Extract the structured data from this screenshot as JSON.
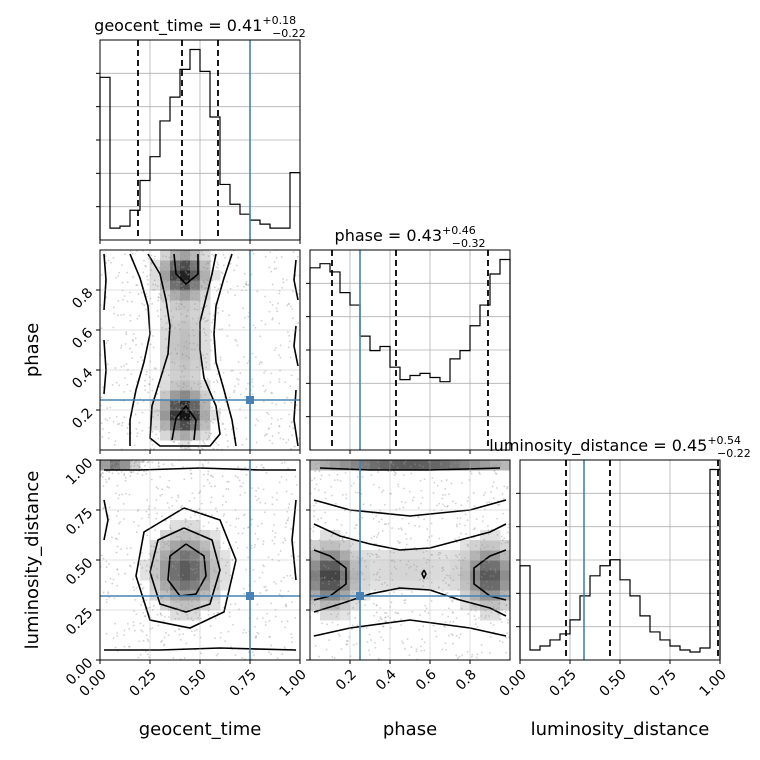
{
  "chart_data": {
    "type": "corner",
    "parameters": [
      "geocent_time",
      "phase",
      "luminosity_distance"
    ],
    "truths": {
      "geocent_time": 0.75,
      "phase": 0.25,
      "luminosity_distance": 0.32
    },
    "colors": {
      "truth": "#4682b4",
      "histogram": "#000000",
      "samples": "#9a9a9a"
    },
    "grid": true,
    "titles": [
      {
        "param": "geocent_time",
        "name": "geocent_time",
        "median": "0.41",
        "plus": "+0.18",
        "minus": "−0.22"
      },
      {
        "param": "phase",
        "name": "phase",
        "median": "0.43",
        "plus": "+0.46",
        "minus": "−0.32"
      },
      {
        "param": "luminosity_distance",
        "name": "luminosity_distance",
        "median": "0.45",
        "plus": "+0.54",
        "minus": "−0.22"
      }
    ],
    "marginals": {
      "geocent_time": {
        "range": [
          0.0,
          1.0
        ],
        "ticks": [
          0.0,
          0.25,
          0.5,
          0.75,
          1.0
        ],
        "tick_labels": [
          "0.00",
          "0.25",
          "0.50",
          "0.75",
          "1.00"
        ],
        "bin_edges": [
          0.0,
          0.05,
          0.1,
          0.15,
          0.2,
          0.25,
          0.3,
          0.35,
          0.4,
          0.45,
          0.5,
          0.55,
          0.6,
          0.65,
          0.7,
          0.75,
          0.8,
          0.85,
          0.9,
          0.95,
          1.0
        ],
        "counts": [
          0.82,
          0.06,
          0.07,
          0.15,
          0.3,
          0.42,
          0.6,
          0.72,
          0.86,
          0.96,
          0.85,
          0.62,
          0.28,
          0.18,
          0.13,
          0.1,
          0.08,
          0.06,
          0.06,
          0.34
        ],
        "quantiles": [
          0.19,
          0.41,
          0.59
        ],
        "truth": 0.75
      },
      "phase": {
        "range": [
          0.0,
          1.0
        ],
        "ticks": [
          0.2,
          0.4,
          0.6,
          0.8
        ],
        "tick_labels": [
          "0.2",
          "0.4",
          "0.6",
          "0.8"
        ],
        "bin_edges": [
          0.0,
          0.05,
          0.1,
          0.15,
          0.2,
          0.25,
          0.3,
          0.35,
          0.4,
          0.45,
          0.5,
          0.55,
          0.6,
          0.65,
          0.7,
          0.75,
          0.8,
          0.85,
          0.9,
          0.95,
          1.0
        ],
        "counts": [
          0.88,
          0.9,
          0.86,
          0.76,
          0.7,
          0.55,
          0.48,
          0.5,
          0.4,
          0.34,
          0.36,
          0.37,
          0.35,
          0.33,
          0.44,
          0.48,
          0.6,
          0.7,
          0.85,
          0.92
        ],
        "quantiles": [
          0.11,
          0.43,
          0.89
        ],
        "truth": 0.25
      },
      "luminosity_distance": {
        "range": [
          0.0,
          1.0
        ],
        "ticks": [
          0.0,
          0.25,
          0.5,
          0.75,
          1.0
        ],
        "tick_labels": [
          "0.00",
          "0.25",
          "0.50",
          "0.75",
          "1.00"
        ],
        "bin_edges": [
          0.0,
          0.05,
          0.1,
          0.15,
          0.2,
          0.25,
          0.3,
          0.35,
          0.4,
          0.45,
          0.5,
          0.55,
          0.6,
          0.65,
          0.7,
          0.75,
          0.8,
          0.85,
          0.9,
          0.95,
          1.0
        ],
        "counts": [
          0.47,
          0.05,
          0.07,
          0.1,
          0.13,
          0.2,
          0.32,
          0.42,
          0.47,
          0.5,
          0.4,
          0.32,
          0.22,
          0.14,
          0.1,
          0.07,
          0.05,
          0.04,
          0.06,
          0.95
        ],
        "quantiles": [
          0.23,
          0.45,
          0.99
        ],
        "truth": 0.32
      }
    },
    "panels_2d": [
      {
        "x": "geocent_time",
        "y": "phase",
        "xlim": [
          0.0,
          1.0
        ],
        "ylim": [
          0.0,
          1.0
        ],
        "y_ticks": [
          0.2,
          0.4,
          0.6,
          0.8
        ],
        "y_tick_labels": [
          "0.2",
          "0.4",
          "0.6",
          "0.8"
        ],
        "density_peaks": [
          {
            "x": 0.42,
            "y": 0.88,
            "amp": 0.9,
            "sx": 0.07,
            "sy": 0.07
          },
          {
            "x": 0.42,
            "y": 0.18,
            "amp": 1.0,
            "sx": 0.07,
            "sy": 0.07
          },
          {
            "x": 0.42,
            "y": 0.53,
            "amp": 0.25,
            "sx": 0.08,
            "sy": 0.18
          }
        ],
        "contours": [
          [
            [
              0.24,
              0.98
            ],
            [
              0.3,
              0.88
            ],
            [
              0.33,
              0.75
            ],
            [
              0.35,
              0.62
            ],
            [
              0.34,
              0.48
            ],
            [
              0.3,
              0.35
            ],
            [
              0.26,
              0.22
            ],
            [
              0.25,
              0.06
            ],
            [
              0.3,
              0.02
            ],
            [
              0.55,
              0.02
            ],
            [
              0.6,
              0.08
            ],
            [
              0.58,
              0.22
            ],
            [
              0.52,
              0.36
            ],
            [
              0.5,
              0.5
            ],
            [
              0.5,
              0.64
            ],
            [
              0.53,
              0.76
            ],
            [
              0.56,
              0.88
            ],
            [
              0.58,
              0.98
            ]
          ],
          [
            [
              0.15,
              0.98
            ],
            [
              0.2,
              0.86
            ],
            [
              0.24,
              0.72
            ],
            [
              0.25,
              0.58
            ],
            [
              0.22,
              0.44
            ],
            [
              0.18,
              0.3
            ],
            [
              0.15,
              0.15
            ],
            [
              0.15,
              0.02
            ]
          ],
          [
            [
              0.66,
              0.98
            ],
            [
              0.62,
              0.86
            ],
            [
              0.58,
              0.72
            ],
            [
              0.57,
              0.58
            ],
            [
              0.58,
              0.44
            ],
            [
              0.62,
              0.3
            ],
            [
              0.66,
              0.15
            ],
            [
              0.68,
              0.02
            ]
          ],
          [
            [
              0.37,
              0.98
            ],
            [
              0.38,
              0.88
            ],
            [
              0.43,
              0.83
            ],
            [
              0.49,
              0.88
            ],
            [
              0.49,
              0.98
            ]
          ],
          [
            [
              0.36,
              0.05
            ],
            [
              0.38,
              0.16
            ],
            [
              0.43,
              0.22
            ],
            [
              0.48,
              0.15
            ],
            [
              0.47,
              0.05
            ]
          ],
          [
            [
              0.02,
              0.98
            ],
            [
              0.03,
              0.85
            ],
            [
              0.02,
              0.7
            ]
          ],
          [
            [
              0.02,
              0.55
            ],
            [
              0.03,
              0.4
            ],
            [
              0.02,
              0.28
            ]
          ],
          [
            [
              0.98,
              0.95
            ],
            [
              0.97,
              0.85
            ],
            [
              0.99,
              0.75
            ]
          ],
          [
            [
              0.98,
              0.62
            ],
            [
              0.97,
              0.52
            ],
            [
              0.99,
              0.42
            ]
          ],
          [
            [
              0.98,
              0.3
            ],
            [
              0.97,
              0.15
            ],
            [
              0.99,
              0.02
            ]
          ]
        ]
      },
      {
        "x": "geocent_time",
        "y": "luminosity_distance",
        "xlim": [
          0.0,
          1.0
        ],
        "ylim": [
          0.0,
          1.0
        ],
        "y_ticks": [
          0.0,
          0.25,
          0.5,
          0.75,
          1.0
        ],
        "y_tick_labels": [
          "0.00",
          "0.25",
          "0.50",
          "0.75",
          "1.00"
        ],
        "density_peaks": [
          {
            "x": 0.43,
            "y": 0.45,
            "amp": 0.7,
            "sx": 0.1,
            "sy": 0.12
          },
          {
            "x": 0.08,
            "y": 0.98,
            "amp": 0.6,
            "sx": 0.06,
            "sy": 0.02
          }
        ],
        "contours": [
          [
            [
              0.43,
              0.58
            ],
            [
              0.52,
              0.52
            ],
            [
              0.53,
              0.42
            ],
            [
              0.48,
              0.33
            ],
            [
              0.4,
              0.32
            ],
            [
              0.34,
              0.4
            ],
            [
              0.35,
              0.52
            ],
            [
              0.43,
              0.58
            ]
          ],
          [
            [
              0.42,
              0.66
            ],
            [
              0.56,
              0.6
            ],
            [
              0.6,
              0.45
            ],
            [
              0.55,
              0.28
            ],
            [
              0.43,
              0.24
            ],
            [
              0.3,
              0.28
            ],
            [
              0.25,
              0.44
            ],
            [
              0.29,
              0.6
            ],
            [
              0.42,
              0.66
            ]
          ],
          [
            [
              0.42,
              0.76
            ],
            [
              0.6,
              0.7
            ],
            [
              0.68,
              0.5
            ],
            [
              0.62,
              0.24
            ],
            [
              0.45,
              0.16
            ],
            [
              0.25,
              0.2
            ],
            [
              0.18,
              0.42
            ],
            [
              0.22,
              0.64
            ],
            [
              0.42,
              0.76
            ]
          ],
          [
            [
              0.02,
              0.95
            ],
            [
              0.2,
              0.95
            ],
            [
              0.5,
              0.96
            ],
            [
              0.8,
              0.95
            ],
            [
              0.98,
              0.95
            ]
          ],
          [
            [
              0.02,
              0.05
            ],
            [
              0.3,
              0.05
            ],
            [
              0.6,
              0.06
            ],
            [
              0.98,
              0.05
            ]
          ],
          [
            [
              0.02,
              0.8
            ],
            [
              0.04,
              0.7
            ],
            [
              0.02,
              0.6
            ]
          ],
          [
            [
              0.98,
              0.8
            ],
            [
              0.96,
              0.6
            ],
            [
              0.98,
              0.4
            ]
          ]
        ]
      },
      {
        "x": "phase",
        "y": "luminosity_distance",
        "xlim": [
          0.0,
          1.0
        ],
        "ylim": [
          0.0,
          1.0
        ],
        "density_peaks": [
          {
            "x": 0.1,
            "y": 0.42,
            "amp": 0.8,
            "sx": 0.08,
            "sy": 0.1
          },
          {
            "x": 0.9,
            "y": 0.42,
            "amp": 0.7,
            "sx": 0.08,
            "sy": 0.1
          },
          {
            "x": 0.5,
            "y": 0.98,
            "amp": 0.7,
            "sx": 0.35,
            "sy": 0.02
          },
          {
            "x": 0.5,
            "y": 0.45,
            "amp": 0.15,
            "sx": 0.2,
            "sy": 0.1
          }
        ],
        "contours": [
          [
            [
              0.02,
              0.68
            ],
            [
              0.15,
              0.62
            ],
            [
              0.3,
              0.58
            ],
            [
              0.45,
              0.55
            ],
            [
              0.6,
              0.56
            ],
            [
              0.75,
              0.6
            ],
            [
              0.9,
              0.64
            ],
            [
              0.98,
              0.68
            ]
          ],
          [
            [
              0.02,
              0.24
            ],
            [
              0.15,
              0.28
            ],
            [
              0.3,
              0.33
            ],
            [
              0.45,
              0.36
            ],
            [
              0.6,
              0.35
            ],
            [
              0.75,
              0.3
            ],
            [
              0.9,
              0.26
            ],
            [
              0.98,
              0.22
            ]
          ],
          [
            [
              0.02,
              0.8
            ],
            [
              0.2,
              0.75
            ],
            [
              0.5,
              0.72
            ],
            [
              0.8,
              0.75
            ],
            [
              0.98,
              0.8
            ]
          ],
          [
            [
              0.02,
              0.12
            ],
            [
              0.2,
              0.16
            ],
            [
              0.5,
              0.2
            ],
            [
              0.8,
              0.16
            ],
            [
              0.98,
              0.12
            ]
          ],
          [
            [
              0.02,
              0.55
            ],
            [
              0.1,
              0.52
            ],
            [
              0.18,
              0.46
            ],
            [
              0.18,
              0.38
            ],
            [
              0.1,
              0.32
            ],
            [
              0.02,
              0.3
            ]
          ],
          [
            [
              0.98,
              0.55
            ],
            [
              0.9,
              0.52
            ],
            [
              0.82,
              0.46
            ],
            [
              0.82,
              0.38
            ],
            [
              0.9,
              0.32
            ],
            [
              0.98,
              0.3
            ]
          ],
          [
            [
              0.05,
              0.96
            ],
            [
              0.3,
              0.95
            ],
            [
              0.6,
              0.95
            ],
            [
              0.95,
              0.96
            ]
          ],
          [
            [
              0.57,
              0.45
            ],
            [
              0.58,
              0.43
            ],
            [
              0.57,
              0.41
            ],
            [
              0.56,
              0.43
            ],
            [
              0.57,
              0.45
            ]
          ]
        ]
      }
    ]
  }
}
